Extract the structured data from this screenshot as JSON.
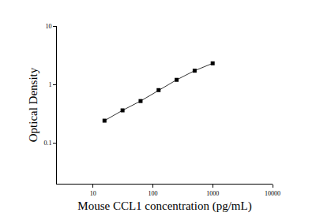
{
  "chart_data": {
    "type": "line",
    "x_label": "Mouse CCL1 concentration (pg/mL)",
    "y_label": "Optical Density",
    "x": [
      15.6,
      31.25,
      62.5,
      125,
      250,
      500,
      1000
    ],
    "values": [
      0.24,
      0.36,
      0.52,
      0.8,
      1.2,
      1.72,
      2.3
    ],
    "color": "#000000",
    "marker": "square",
    "line_style": "solid",
    "log": true,
    "grid": false,
    "xlim": [
      2.5,
      10000
    ],
    "ylim": [
      0.02,
      10
    ],
    "xticks": [
      10,
      100,
      1000,
      10000
    ],
    "yticks": [
      0.1,
      1,
      10
    ]
  }
}
